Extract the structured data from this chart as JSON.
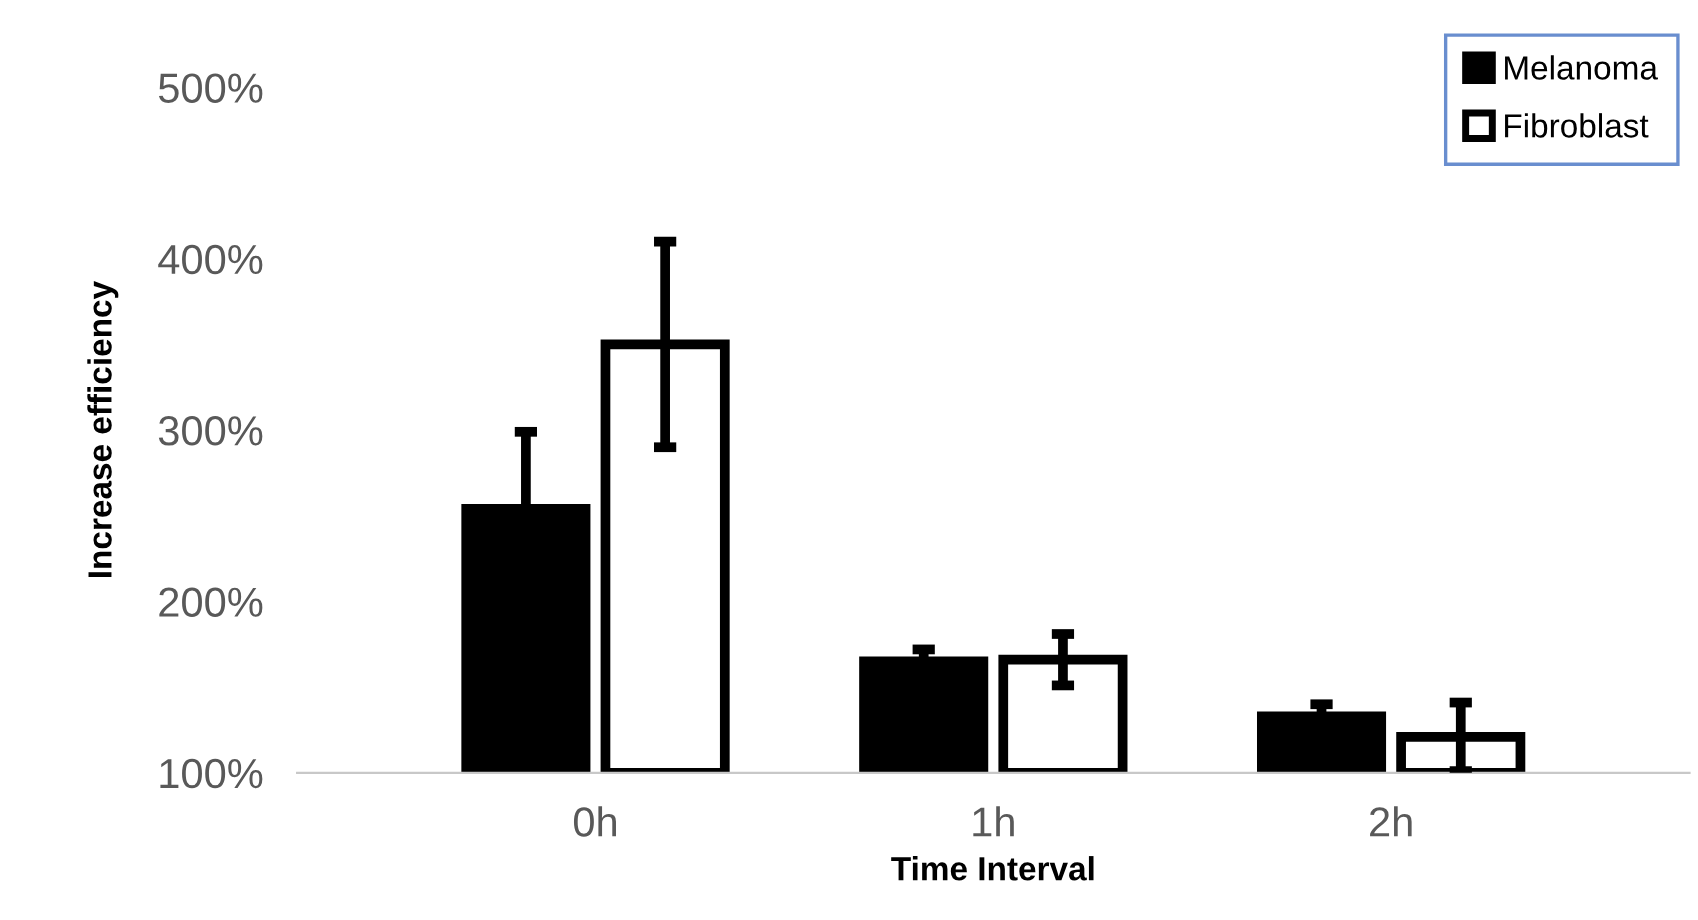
{
  "chart_data": {
    "type": "bar",
    "xlabel": "Time Interval",
    "ylabel": "Increase efficiency",
    "categories": [
      "0h",
      "1h",
      "2h"
    ],
    "series": [
      {
        "name": "Melanoma",
        "color": "#000000",
        "values": [
          254,
          165,
          133
        ],
        "errors": [
          45,
          7,
          7
        ]
      },
      {
        "name": "Fibroblast",
        "color": "#ffffff",
        "values": [
          350,
          166,
          121
        ],
        "errors": [
          60,
          15,
          20
        ]
      }
    ],
    "ylim": [
      100,
      500
    ],
    "yticks": [
      {
        "value": 100,
        "label": "100%"
      },
      {
        "value": 200,
        "label": "200%"
      },
      {
        "value": 300,
        "label": "300%"
      },
      {
        "value": 400,
        "label": "400%"
      },
      {
        "value": 500,
        "label": "500%"
      }
    ],
    "grid": false,
    "legend": "top right"
  }
}
